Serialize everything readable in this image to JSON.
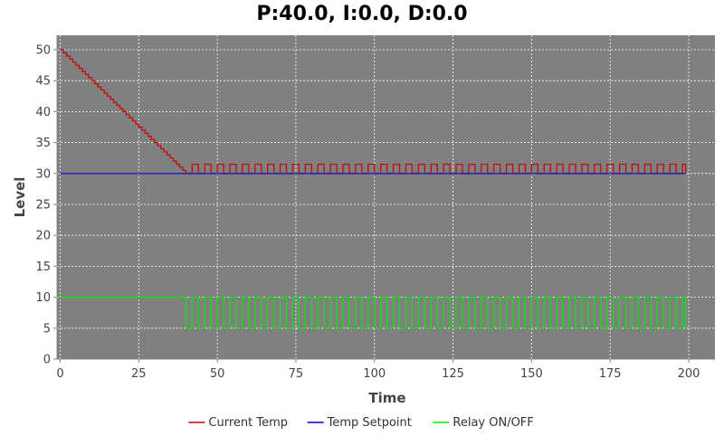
{
  "chart_data": {
    "type": "line",
    "title": "P:40.0, I:0.0, D:0.0",
    "xlabel": "Time",
    "ylabel": "Level",
    "xlim": [
      0,
      200
    ],
    "ylim": [
      0,
      52.5
    ],
    "x_ticks": [
      0,
      25,
      50,
      75,
      100,
      125,
      150,
      175,
      200
    ],
    "y_ticks": [
      0,
      5,
      10,
      15,
      20,
      25,
      30,
      35,
      40,
      45,
      50
    ],
    "grid": true,
    "legend_position": "bottom",
    "background_color": "#808080",
    "series": [
      {
        "name": "Current Temp",
        "color": "#cc0000",
        "shape": "step",
        "x": [
          0,
          40,
          42,
          44,
          46,
          48,
          50,
          52,
          54,
          56,
          58,
          60,
          62,
          64,
          66,
          68,
          70,
          72,
          74,
          76,
          78,
          80,
          82,
          84,
          86,
          88,
          90,
          92,
          94,
          96,
          98,
          100,
          102,
          104,
          106,
          108,
          110,
          112,
          114,
          116,
          118,
          120,
          122,
          124,
          126,
          128,
          130,
          132,
          134,
          136,
          138,
          140,
          142,
          144,
          146,
          148,
          150,
          152,
          154,
          156,
          158,
          160,
          162,
          164,
          166,
          168,
          170,
          172,
          174,
          176,
          178,
          180,
          182,
          184,
          186,
          188,
          190,
          192,
          194,
          196,
          198,
          199
        ],
        "y": [
          50,
          30,
          31.5,
          30,
          31.5,
          30,
          31.5,
          30,
          31.5,
          30,
          31.5,
          30,
          31.5,
          30,
          31.5,
          30,
          31.5,
          30,
          31.5,
          30,
          31.5,
          30,
          31.5,
          30,
          31.5,
          30,
          31.5,
          30,
          31.5,
          30,
          31.5,
          30,
          31.5,
          30,
          31.5,
          30,
          31.5,
          30,
          31.5,
          30,
          31.5,
          30,
          31.5,
          30,
          31.5,
          30,
          31.5,
          30,
          31.5,
          30,
          31.5,
          30,
          31.5,
          30,
          31.5,
          30,
          31.5,
          30,
          31.5,
          30,
          31.5,
          30,
          31.5,
          30,
          31.5,
          30,
          31.5,
          30,
          31.5,
          30,
          31.5,
          30,
          31.5,
          30,
          31.5,
          30,
          31.5,
          30,
          31.5,
          30,
          31.5,
          30
        ]
      },
      {
        "name": "Temp Setpoint",
        "color": "#0000cc",
        "shape": "line",
        "x": [
          0,
          199
        ],
        "y": [
          30,
          30
        ]
      },
      {
        "name": "Relay ON/OFF",
        "color": "#00ee00",
        "shape": "step",
        "x": [
          0,
          40,
          42,
          44,
          46,
          48,
          50,
          52,
          54,
          56,
          58,
          60,
          62,
          64,
          66,
          68,
          70,
          72,
          74,
          76,
          78,
          80,
          82,
          84,
          86,
          88,
          90,
          92,
          94,
          96,
          98,
          100,
          102,
          104,
          106,
          108,
          110,
          112,
          114,
          116,
          118,
          120,
          122,
          124,
          126,
          128,
          130,
          132,
          134,
          136,
          138,
          140,
          142,
          144,
          146,
          148,
          150,
          152,
          154,
          156,
          158,
          160,
          162,
          164,
          166,
          168,
          170,
          172,
          174,
          176,
          178,
          180,
          182,
          184,
          186,
          188,
          190,
          192,
          194,
          196,
          198,
          199
        ],
        "y": [
          10,
          5,
          10,
          5,
          10,
          5,
          10,
          5,
          10,
          5,
          10,
          5,
          10,
          5,
          10,
          5,
          10,
          5,
          10,
          5,
          10,
          5,
          10,
          5,
          10,
          5,
          10,
          5,
          10,
          5,
          10,
          5,
          10,
          5,
          10,
          5,
          10,
          5,
          10,
          5,
          10,
          5,
          10,
          5,
          10,
          5,
          10,
          5,
          10,
          5,
          10,
          5,
          10,
          5,
          10,
          5,
          10,
          5,
          10,
          5,
          10,
          5,
          10,
          5,
          10,
          5,
          10,
          5,
          10,
          5,
          10,
          5,
          10,
          5,
          10,
          5,
          10,
          5,
          10,
          5,
          10,
          5
        ]
      }
    ]
  }
}
